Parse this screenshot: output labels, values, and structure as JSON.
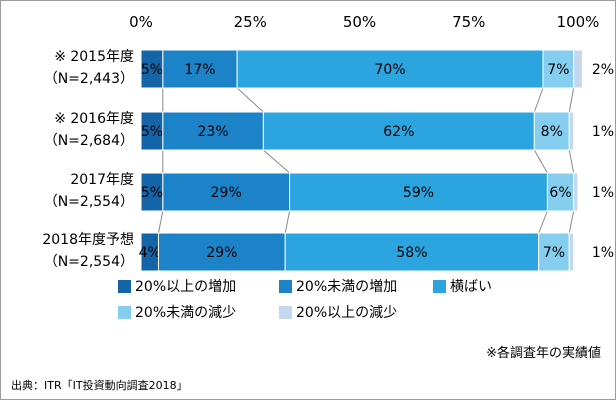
{
  "chart_data": {
    "type": "bar",
    "orientation": "horizontal",
    "stacked": true,
    "normalized": true,
    "xlim": [
      0,
      100
    ],
    "xticks": [
      "0%",
      "25%",
      "50%",
      "75%",
      "100%"
    ],
    "categories": [
      {
        "line1": "※ 2015年度",
        "line2": "（N=2,443）"
      },
      {
        "line1": "※ 2016年度",
        "line2": "（N=2,684）"
      },
      {
        "line1": "2017年度",
        "line2": "（N=2,554）"
      },
      {
        "line1": "2018年度予想",
        "line2": "（N=2,554）"
      }
    ],
    "series": [
      {
        "name": "20%以上の増加",
        "color": "#1464a8",
        "values": [
          5,
          5,
          5,
          4
        ],
        "labels": [
          "5%",
          "5%",
          "5%",
          "4%"
        ]
      },
      {
        "name": "20%未満の増加",
        "color": "#1d83c9",
        "values": [
          17,
          23,
          29,
          29
        ],
        "labels": [
          "17%",
          "23%",
          "29%",
          "29%"
        ]
      },
      {
        "name": "横ばい",
        "color": "#2ca4e0",
        "values": [
          70,
          62,
          59,
          58
        ],
        "labels": [
          "70%",
          "62%",
          "59%",
          "58%"
        ]
      },
      {
        "name": "20%未満の減少",
        "color": "#86cef0",
        "values": [
          7,
          8,
          6,
          7
        ],
        "labels": [
          "7%",
          "8%",
          "6%",
          "7%"
        ]
      },
      {
        "name": "20%以上の減少",
        "color": "#c3d8ee",
        "values": [
          2,
          1,
          1,
          1
        ],
        "labels": [
          "2%",
          "1%",
          "1%",
          "1%"
        ]
      }
    ],
    "note": "※各調査年の実績値",
    "source": "出典：ITR「IT投資動向調査2018」"
  }
}
